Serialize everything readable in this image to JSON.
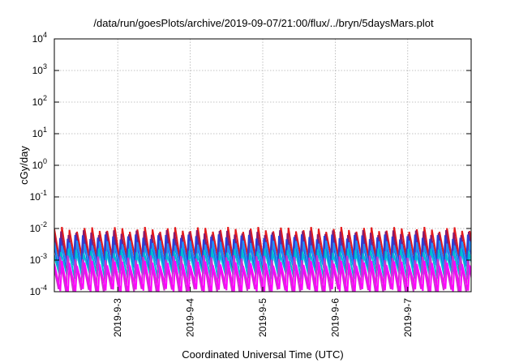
{
  "chart_data": {
    "type": "line",
    "title": "/data/run/goesPlots/archive/2019-09-07/21:00/flux/../bryn/5daysMars.plot",
    "xlabel": "Coordinated Universal Time (UTC)",
    "ylabel": "cGy/day",
    "yscale": "log",
    "ylim": [
      0.0001,
      10000
    ],
    "yticks": [
      {
        "mant": "10",
        "exp": "4",
        "value": 10000
      },
      {
        "mant": "10",
        "exp": "3",
        "value": 1000
      },
      {
        "mant": "10",
        "exp": "2",
        "value": 100
      },
      {
        "mant": "10",
        "exp": "1",
        "value": 10
      },
      {
        "mant": "10",
        "exp": "0",
        "value": 1
      },
      {
        "mant": "10",
        "exp": "-1",
        "value": 0.1
      },
      {
        "mant": "10",
        "exp": "-2",
        "value": 0.01
      },
      {
        "mant": "10",
        "exp": "-3",
        "value": 0.001
      },
      {
        "mant": "10",
        "exp": "-4",
        "value": 0.0001
      }
    ],
    "xlim": [
      "2019-09-02 03:00",
      "2019-09-07 21:00"
    ],
    "xticks": [
      {
        "label": "2019-9-3",
        "value": "2019-09-03"
      },
      {
        "label": "2019-9-4",
        "value": "2019-09-04"
      },
      {
        "label": "2019-9-5",
        "value": "2019-09-05"
      },
      {
        "label": "2019-9-6",
        "value": "2019-09-06"
      },
      {
        "label": "2019-9-7",
        "value": "2019-09-07"
      }
    ],
    "grid": true,
    "sawtooth_period_hours": 2.5,
    "series": [
      {
        "color": "#e41a1c",
        "peak": 0.0095,
        "trough": 0.0007
      },
      {
        "color": "#8b1a6b",
        "peak": 0.0075,
        "trough": 0.0005
      },
      {
        "color": "#2b3fd6",
        "peak": 0.0055,
        "trough": 0.0006
      },
      {
        "color": "#1e90ff",
        "peak": 0.0035,
        "trough": 0.0004
      },
      {
        "color": "#00bcd4",
        "peak": 0.002,
        "trough": 0.0003
      },
      {
        "color": "#cc33cc",
        "peak": 0.0012,
        "trough": 0.0001
      },
      {
        "color": "#ff00ff",
        "peak": 0.0008,
        "trough": 0.0001
      }
    ]
  }
}
